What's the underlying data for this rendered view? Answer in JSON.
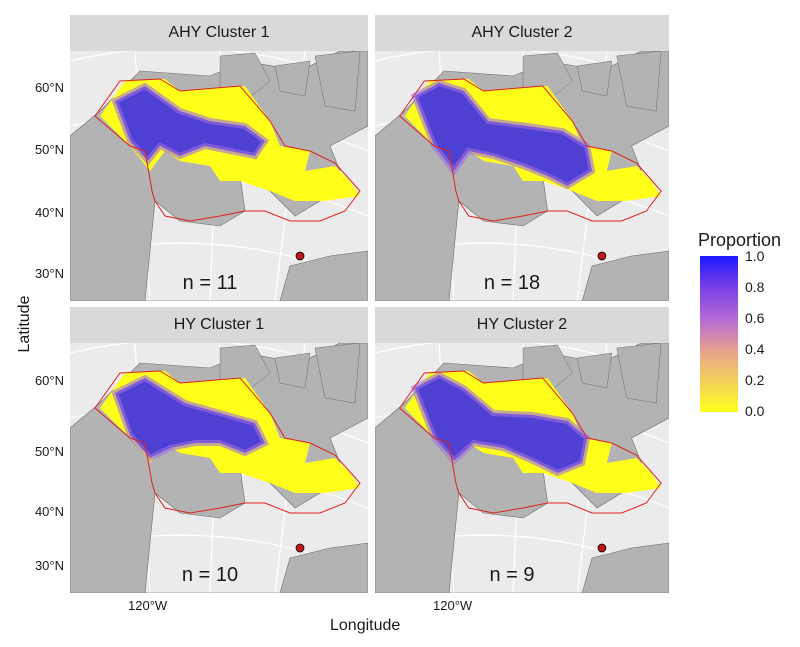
{
  "axis": {
    "y_title": "Latitude",
    "x_title": "Longitude",
    "y_ticks": [
      "60°N",
      "50°N",
      "40°N",
      "30°N"
    ],
    "x_ticks": [
      "120°W"
    ]
  },
  "panels": [
    {
      "title": "AHY Cluster 1",
      "n_label": "n = 11"
    },
    {
      "title": "AHY Cluster 2",
      "n_label": "n = 18"
    },
    {
      "title": "HY Cluster 1",
      "n_label": "n = 10"
    },
    {
      "title": "HY Cluster 2",
      "n_label": "n = 9"
    }
  ],
  "legend": {
    "title": "Proportion",
    "ticks": [
      "1.0",
      "0.8",
      "0.6",
      "0.4",
      "0.2",
      "0.0"
    ],
    "low_color": "#ffff1a",
    "high_color": "#1a1aff"
  },
  "colors": {
    "land": "#b3b3b3",
    "water_bg": "#ebebeb",
    "graticule": "#ffffff",
    "range_outline": "#e0201b",
    "marker": "#c0151b"
  }
}
